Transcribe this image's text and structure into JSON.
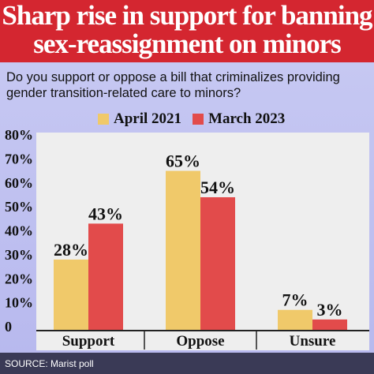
{
  "header": {
    "title_line1": "Sharp rise in support for banning",
    "title_line2": "sex-reassignment on minors"
  },
  "question": "Do you support or oppose a bill that criminalizes providing gender transition-related care to minors?",
  "source": "SOURCE: Marist poll",
  "colors": {
    "header_bg": "#d42630",
    "april_2021": "#f0c96a",
    "march_2023": "#e24b4b",
    "plot_bg": "#eeeeee"
  },
  "chart_data": {
    "type": "bar",
    "categories": [
      "Support",
      "Oppose",
      "Unsure"
    ],
    "series": [
      {
        "name": "April 2021",
        "values": [
          28,
          65,
          7
        ]
      },
      {
        "name": "March 2023",
        "values": [
          43,
          54,
          3
        ]
      }
    ],
    "data_labels": [
      [
        "28%",
        "65%",
        "7%"
      ],
      [
        "43%",
        "54%",
        "3%"
      ]
    ],
    "yticks": [
      "80%",
      "70%",
      "60%",
      "50%",
      "40%",
      "30%",
      "20%",
      "10%",
      "0"
    ],
    "ylim": [
      0,
      80
    ],
    "grid": false,
    "legend": "top"
  }
}
